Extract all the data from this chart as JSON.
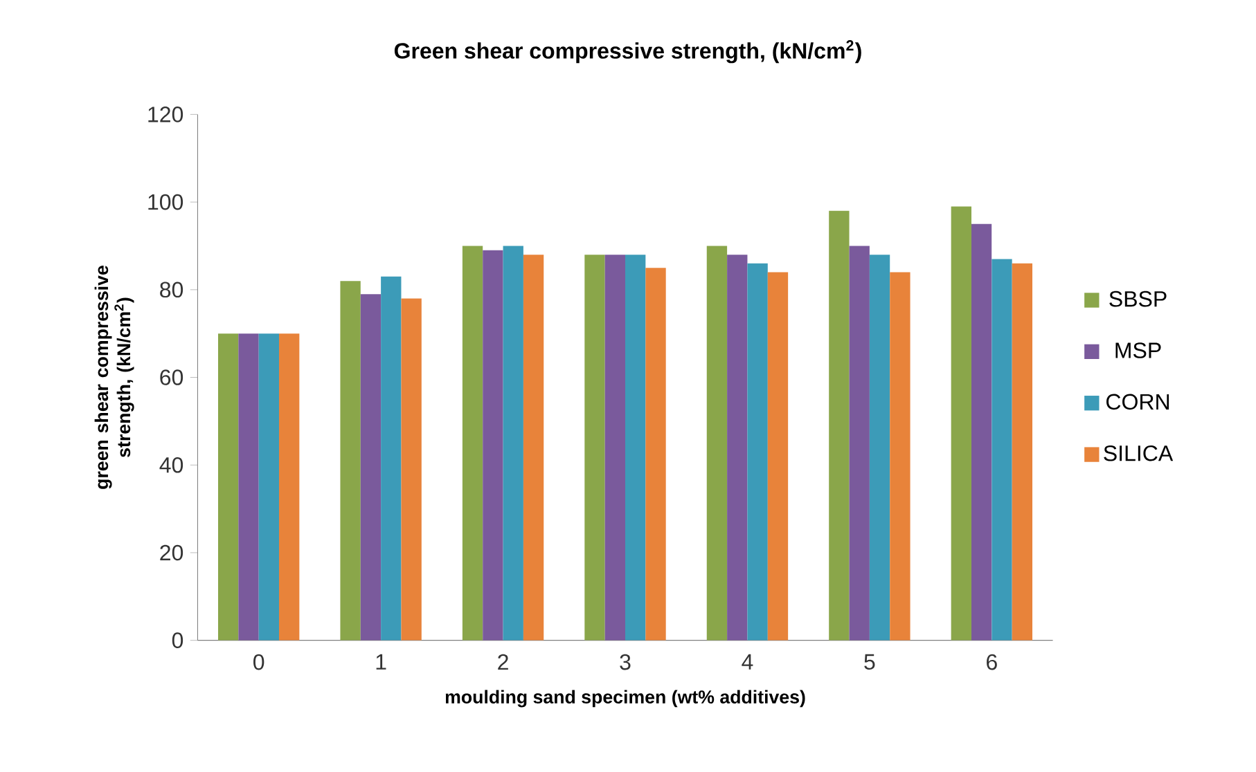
{
  "chart_data": {
    "type": "bar",
    "title": "Green shear compressive strength, (kN/cm$^{2}$)",
    "xlabel": "moulding sand specimen (wt% additives)",
    "ylabel": "green shear compressive strength, (kN/cm$^{2}$)",
    "categories": [
      "0",
      "1",
      "2",
      "3",
      "4",
      "5",
      "6"
    ],
    "series": [
      {
        "name": "SBSP",
        "color": "#8aa64a",
        "values": [
          70,
          82,
          90,
          88,
          90,
          98,
          99
        ]
      },
      {
        "name": "MSP",
        "color": "#7a5a9c",
        "values": [
          70,
          79,
          89,
          88,
          88,
          90,
          95
        ]
      },
      {
        "name": "CORN",
        "color": "#3c9bb8",
        "values": [
          70,
          83,
          90,
          88,
          86,
          88,
          87
        ]
      },
      {
        "name": "SILICA",
        "color": "#e8833a",
        "values": [
          70,
          78,
          88,
          85,
          84,
          84,
          86
        ]
      }
    ],
    "ylim": [
      0,
      120
    ],
    "yticks": [
      0,
      20,
      40,
      60,
      80,
      100,
      120
    ],
    "legend": "right"
  }
}
